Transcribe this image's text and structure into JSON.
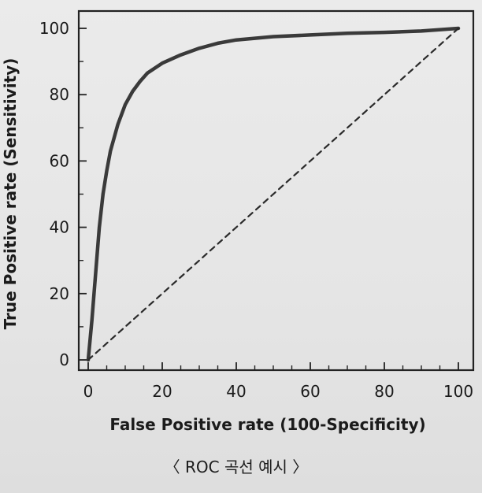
{
  "chart_data": {
    "type": "line",
    "title": "",
    "xlabel": "False Positive rate (100-Specificity)",
    "ylabel": "True Positive rate (Sensitivity)",
    "xlim": [
      0,
      100
    ],
    "ylim": [
      0,
      100
    ],
    "x_ticks": [
      0,
      20,
      40,
      60,
      80,
      100
    ],
    "y_ticks": [
      0,
      20,
      40,
      60,
      80,
      100
    ],
    "grid": false,
    "series": [
      {
        "style": "solid",
        "color": "#3a3a3a",
        "x": [
          0,
          1,
          2,
          3,
          4,
          5,
          6,
          8,
          10,
          12,
          14,
          16,
          18,
          20,
          25,
          30,
          35,
          40,
          50,
          60,
          70,
          80,
          90,
          100
        ],
        "y": [
          0,
          12,
          26,
          40,
          50,
          57,
          63,
          71,
          77,
          81,
          84,
          86.5,
          88,
          89.5,
          92,
          94,
          95.5,
          96.5,
          97.5,
          98,
          98.5,
          98.8,
          99.2,
          100
        ]
      },
      {
        "style": "dashed",
        "color": "#2a2a2a",
        "x": [
          0,
          100
        ],
        "y": [
          0,
          100
        ]
      }
    ]
  },
  "caption": "〈 ROC 곡선 예시 〉"
}
